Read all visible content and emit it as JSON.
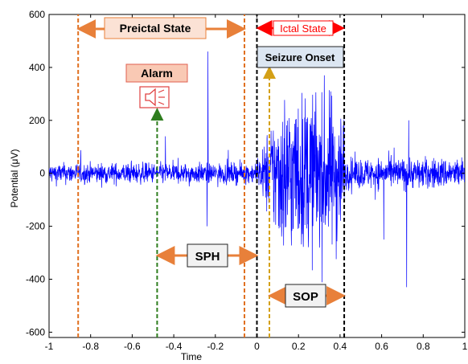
{
  "chart_data": {
    "type": "line",
    "xlabel": "Time",
    "ylabel": "Potential (μV)",
    "xlim": [
      -1,
      1
    ],
    "ylim": [
      -620,
      600
    ],
    "x_ticks": [
      -1,
      -0.8,
      -0.6,
      -0.4,
      -0.2,
      0,
      0.2,
      0.4,
      0.6,
      0.8,
      1
    ],
    "x_tick_labels": [
      "-1",
      "-0.8",
      "-0.6",
      "-0.4",
      "-0.2",
      "0",
      "0.2",
      "0.4",
      "0.6",
      "0.8",
      "1"
    ],
    "y_ticks": [
      600,
      400,
      200,
      0,
      -200,
      -400,
      -600
    ],
    "y_tick_labels": [
      "600",
      "400",
      "200",
      "0",
      "-200",
      "-400",
      "-600"
    ],
    "grid": false,
    "series": [
      {
        "color": "#0000ff",
        "segments": [
          {
            "x_range": [
              -1,
              -0.02
            ],
            "typical_amplitude": 60,
            "spikes": [
              {
                "x": -0.235,
                "y": 460
              },
              {
                "x": -0.24,
                "y": -200
              },
              {
                "x": -0.44,
                "y": 140
              }
            ]
          },
          {
            "x_range": [
              -0.02,
              0.42
            ],
            "typical_amplitude": 380,
            "max": 400,
            "min": -600
          },
          {
            "x_range": [
              0.42,
              1
            ],
            "typical_amplitude": 90,
            "spikes": [
              {
                "x": 0.61,
                "y": -250
              },
              {
                "x": 0.72,
                "y": -430
              },
              {
                "x": 0.73,
                "y": 200
              }
            ]
          }
        ]
      }
    ],
    "markers": [
      {
        "x": -0.86,
        "color": "#e07020",
        "style": "dashed"
      },
      {
        "x": -0.06,
        "color": "#e07020",
        "style": "dashed"
      },
      {
        "x": 0.0,
        "color": "#000000",
        "style": "dashed"
      },
      {
        "x": 0.42,
        "color": "#000000",
        "style": "dashed"
      },
      {
        "x": -0.48,
        "color": "#2e7d1e",
        "style": "dashed"
      },
      {
        "x": 0.06,
        "color": "#d4a017",
        "style": "dashed"
      }
    ],
    "annotations": {
      "preictal": {
        "text": "Preictal State",
        "x_from": -0.86,
        "x_to": -0.06
      },
      "ictal": {
        "text": "Ictal State",
        "x_from": 0.0,
        "x_to": 0.42
      },
      "alarm": {
        "text": "Alarm",
        "x": -0.48
      },
      "seizure_onset": {
        "text": "Seizure Onset",
        "x": 0.06
      },
      "sph": {
        "text": "SPH",
        "x_from": -0.48,
        "x_to": 0.0
      },
      "sop": {
        "text": "SOP",
        "x_from": 0.06,
        "x_to": 0.42
      }
    }
  },
  "colors": {
    "signal": "#0000ff",
    "orange": "#e8803a",
    "orange_box_fill": "#fbe2d5",
    "alarm_box_fill": "#f9c9b4",
    "alarm_box_border": "#e06050",
    "seizure_box_fill": "#dce6f2",
    "sph_box_fill": "#f2f2f2",
    "ictal_red": "#ff0000",
    "green": "#2e7d1e",
    "gold": "#d4a017"
  },
  "icons": {
    "alarm": "speaker-icon"
  }
}
